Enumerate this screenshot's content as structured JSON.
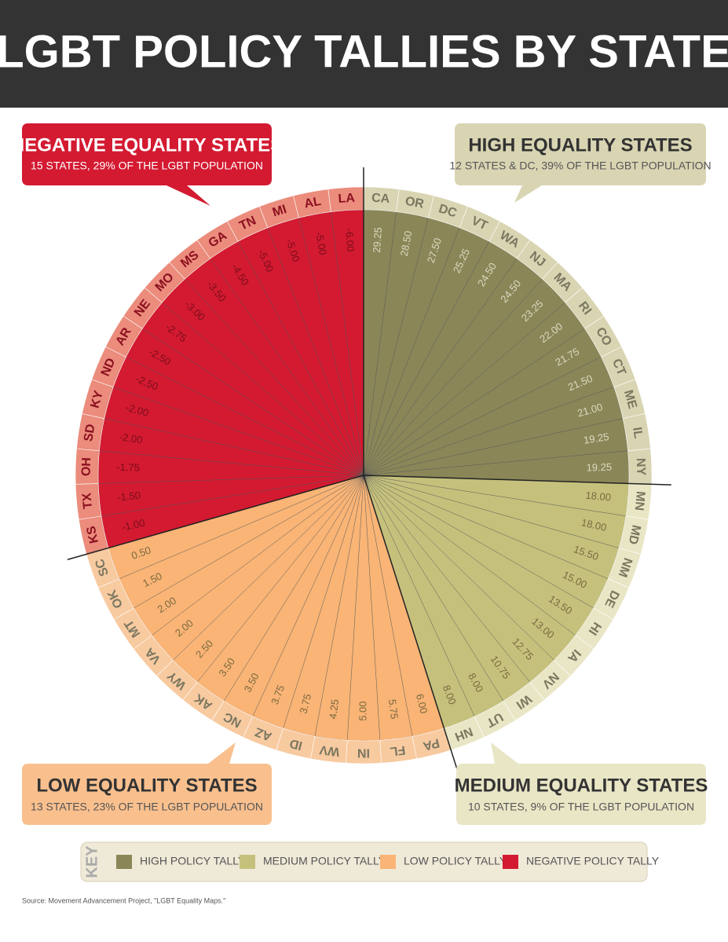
{
  "chart_data": {
    "type": "radial",
    "title": "LGBT POLICY TALLIES BY STATE",
    "series": [
      {
        "name": "HIGH EQUALITY STATES",
        "subtitle": "12 STATES & DC, 39% OF THE LGBT POPULATION",
        "color": "#8a8658",
        "ring_color": "#d9d5b3",
        "categories": [
          "CA",
          "OR",
          "DC",
          "VT",
          "WA",
          "NJ",
          "MA",
          "RI",
          "CO",
          "CT",
          "ME",
          "IL",
          "NY"
        ],
        "values": [
          29.25,
          28.5,
          27.5,
          25.25,
          24.5,
          24.5,
          23.25,
          22,
          21.75,
          21.5,
          21,
          19.25,
          19.25
        ],
        "value_labels": [
          "29.25",
          "28.50",
          "27.50",
          "25.25",
          "24.50",
          "24.50",
          "23.25",
          "22.00",
          "21.75",
          "21.50",
          "21.00",
          "19.25",
          "19.25"
        ]
      },
      {
        "name": "MEDIUM EQUALITY STATES",
        "subtitle": "10 STATES, 9% OF THE LGBT POPULATION",
        "color": "#c5c17c",
        "ring_color": "#e9e6c6",
        "categories": [
          "MN",
          "MD",
          "NM",
          "DE",
          "HI",
          "IA",
          "NV",
          "WI",
          "UT",
          "NH"
        ],
        "values": [
          18,
          18,
          15.5,
          15,
          13.5,
          13,
          12.75,
          10.75,
          8,
          8
        ],
        "value_labels": [
          "18.00",
          "18.00",
          "15.50",
          "15.00",
          "13.50",
          "13.00",
          "12.75",
          "10.75",
          "8.00",
          "8.00"
        ]
      },
      {
        "name": "LOW EQUALITY STATES",
        "subtitle": "13 STATES, 23% OF THE LGBT POPULATION",
        "color": "#f9b476",
        "ring_color": "#f8caa0",
        "categories": [
          "PA",
          "FL",
          "IN",
          "WV",
          "ID",
          "AZ",
          "NC",
          "AK",
          "WY",
          "VA",
          "MT",
          "OK",
          "SC"
        ],
        "values": [
          6,
          5.75,
          5,
          4.25,
          3.75,
          3.75,
          3.5,
          3.5,
          2.5,
          2,
          2,
          1.5,
          0.5
        ],
        "value_labels": [
          "6.00",
          "5.75",
          "5.00",
          "4.25",
          "3.75",
          "3.75",
          "3.50",
          "3.50",
          "2.50",
          "2.00",
          "2.00",
          "1.50",
          "0.50"
        ]
      },
      {
        "name": "NEGATIVE EQUALITY STATES",
        "subtitle": "15 STATES, 29% OF THE LGBT POPULATION",
        "color": "#d31a31",
        "ring_color": "#eb8c7c",
        "categories": [
          "KS",
          "TX",
          "OH",
          "SD",
          "KY",
          "ND",
          "AR",
          "NE",
          "MO",
          "MS",
          "GA",
          "TN",
          "MI",
          "AL",
          "LA"
        ],
        "values": [
          -1,
          -1.5,
          -1.75,
          -2,
          -2,
          -2.5,
          -2.5,
          -2.75,
          -3,
          -3.5,
          -4.5,
          -5,
          -5,
          -5,
          -6
        ],
        "value_labels": [
          "-1.00",
          "-1.50",
          "-1.75",
          "-2.00",
          "-2.00",
          "-2.50",
          "-2.50",
          "-2.75",
          "-3.00",
          "-3.50",
          "-4.50",
          "-5.00",
          "-5.00",
          "-5.00",
          "-6.00"
        ]
      }
    ],
    "key": {
      "title": "KEY",
      "labels": [
        "HIGH POLICY TALLY",
        "MEDIUM POLICY TALLY",
        "LOW POLICY TALLY",
        "NEGATIVE POLICY TALLY"
      ]
    },
    "source": "Source: Movement Advancement Project, \"LGBT Equality Maps.\""
  }
}
